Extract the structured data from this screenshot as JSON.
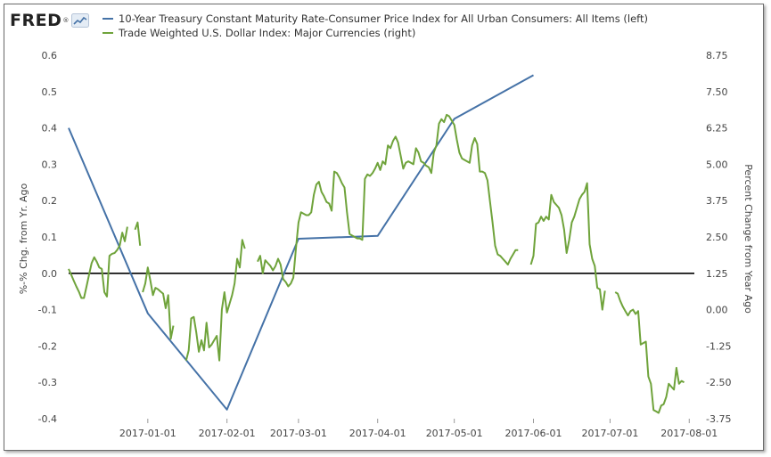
{
  "logo": {
    "text": "FRED",
    "reg_mark": "®"
  },
  "chart_data": {
    "type": "line",
    "series": [
      {
        "name": "10-Year Treasury Constant Maturity Rate-Consumer Price Index for All Urban Consumers: All Items (left)",
        "axis": "left",
        "color": "#4572a7",
        "points": [
          [
            "2016-12-01",
            0.4
          ],
          [
            "2017-01-01",
            -0.11
          ],
          [
            "2017-02-01",
            -0.375
          ],
          [
            "2017-03-01",
            0.095
          ],
          [
            "2017-04-01",
            0.103
          ],
          [
            "2017-05-01",
            0.425
          ],
          [
            "2017-06-01",
            0.545
          ]
        ]
      },
      {
        "name": "Trade Weighted U.S. Dollar Index: Major Currencies (right)",
        "axis": "right",
        "color": "#6fa33b",
        "segments": [
          [
            [
              "2016-12-01",
              1.4
            ],
            [
              "2016-12-02",
              1.2
            ],
            [
              "2016-12-03",
              1.0
            ],
            [
              "2016-12-04",
              0.8
            ],
            [
              "2016-12-05",
              0.62
            ],
            [
              "2016-12-06",
              0.4
            ],
            [
              "2016-12-07",
              0.4
            ],
            [
              "2016-12-08",
              0.8
            ],
            [
              "2016-12-09",
              1.2
            ],
            [
              "2016-12-10",
              1.6
            ],
            [
              "2016-12-11",
              1.8
            ],
            [
              "2016-12-12",
              1.65
            ],
            [
              "2016-12-13",
              1.45
            ],
            [
              "2016-12-14",
              1.4
            ],
            [
              "2016-12-15",
              0.6
            ],
            [
              "2016-12-16",
              0.45
            ],
            [
              "2016-12-17",
              1.85
            ],
            [
              "2016-12-18",
              1.92
            ],
            [
              "2016-12-19",
              1.95
            ],
            [
              "2016-12-20",
              2.05
            ],
            [
              "2016-12-21",
              2.2
            ],
            [
              "2016-12-22",
              2.65
            ],
            [
              "2016-12-23",
              2.35
            ],
            [
              "2016-12-24",
              2.85
            ]
          ],
          [
            [
              "2016-12-27",
              2.75
            ],
            [
              "2016-12-28",
              3.0
            ],
            [
              "2016-12-29",
              2.2
            ]
          ],
          [
            [
              "2016-12-30",
              0.6
            ],
            [
              "2016-12-31",
              0.9
            ],
            [
              "2017-01-01",
              1.45
            ],
            [
              "2017-01-02",
              1.0
            ],
            [
              "2017-01-03",
              0.5
            ],
            [
              "2017-01-04",
              0.75
            ],
            [
              "2017-01-05",
              0.7
            ],
            [
              "2017-01-06",
              0.62
            ],
            [
              "2017-01-07",
              0.55
            ],
            [
              "2017-01-08",
              0.05
            ],
            [
              "2017-01-09",
              0.5
            ],
            [
              "2017-01-10",
              -1.0
            ],
            [
              "2017-01-11",
              -0.55
            ]
          ],
          [
            [
              "2017-01-16",
              -1.75
            ],
            [
              "2017-01-17",
              -1.4
            ],
            [
              "2017-01-18",
              -0.3
            ],
            [
              "2017-01-19",
              -0.25
            ],
            [
              "2017-01-20",
              -0.8
            ],
            [
              "2017-01-21",
              -1.45
            ],
            [
              "2017-01-22",
              -1.05
            ],
            [
              "2017-01-23",
              -1.4
            ],
            [
              "2017-01-24",
              -0.45
            ],
            [
              "2017-01-25",
              -1.3
            ],
            [
              "2017-01-26",
              -1.2
            ],
            [
              "2017-01-27",
              -1.05
            ],
            [
              "2017-01-28",
              -0.9
            ],
            [
              "2017-01-29",
              -1.75
            ],
            [
              "2017-01-30",
              0.0
            ],
            [
              "2017-01-31",
              0.6
            ],
            [
              "2017-02-01",
              -0.1
            ],
            [
              "2017-02-02",
              0.2
            ],
            [
              "2017-02-03",
              0.5
            ],
            [
              "2017-02-04",
              0.9
            ],
            [
              "2017-02-05",
              1.75
            ],
            [
              "2017-02-06",
              1.45
            ],
            [
              "2017-02-07",
              2.4
            ],
            [
              "2017-02-08",
              2.1
            ]
          ],
          [
            [
              "2017-02-13",
              1.65
            ],
            [
              "2017-02-14",
              1.85
            ],
            [
              "2017-02-15",
              1.25
            ],
            [
              "2017-02-16",
              1.7
            ],
            [
              "2017-02-17",
              1.6
            ],
            [
              "2017-02-18",
              1.5
            ],
            [
              "2017-02-19",
              1.35
            ],
            [
              "2017-02-20",
              1.5
            ],
            [
              "2017-02-21",
              1.75
            ],
            [
              "2017-02-22",
              1.55
            ],
            [
              "2017-02-23",
              1.05
            ],
            [
              "2017-02-24",
              0.95
            ],
            [
              "2017-02-25",
              0.8
            ],
            [
              "2017-02-26",
              0.9
            ],
            [
              "2017-02-27",
              1.1
            ],
            [
              "2017-02-28",
              2.1
            ],
            [
              "2017-03-01",
              3.0
            ],
            [
              "2017-03-02",
              3.35
            ],
            [
              "2017-03-03",
              3.3
            ],
            [
              "2017-03-04",
              3.25
            ],
            [
              "2017-03-05",
              3.25
            ],
            [
              "2017-03-06",
              3.35
            ],
            [
              "2017-03-07",
              3.95
            ],
            [
              "2017-03-08",
              4.3
            ],
            [
              "2017-03-09",
              4.4
            ],
            [
              "2017-03-10",
              4.05
            ],
            [
              "2017-03-11",
              3.9
            ],
            [
              "2017-03-12",
              3.7
            ],
            [
              "2017-03-13",
              3.65
            ],
            [
              "2017-03-14",
              3.4
            ],
            [
              "2017-03-15",
              4.75
            ],
            [
              "2017-03-16",
              4.7
            ],
            [
              "2017-03-17",
              4.55
            ],
            [
              "2017-03-18",
              4.35
            ],
            [
              "2017-03-19",
              4.2
            ],
            [
              "2017-03-20",
              3.35
            ],
            [
              "2017-03-21",
              2.6
            ],
            [
              "2017-03-22",
              2.55
            ],
            [
              "2017-03-23",
              2.5
            ],
            [
              "2017-03-24",
              2.45
            ],
            [
              "2017-03-25",
              2.45
            ],
            [
              "2017-03-26",
              2.4
            ],
            [
              "2017-03-27",
              4.5
            ],
            [
              "2017-03-28",
              4.65
            ],
            [
              "2017-03-29",
              4.6
            ],
            [
              "2017-03-30",
              4.7
            ],
            [
              "2017-03-31",
              4.85
            ],
            [
              "2017-04-01",
              5.05
            ],
            [
              "2017-04-02",
              4.8
            ],
            [
              "2017-04-03",
              5.1
            ],
            [
              "2017-04-04",
              5.0
            ],
            [
              "2017-04-05",
              5.65
            ],
            [
              "2017-04-06",
              5.55
            ],
            [
              "2017-04-07",
              5.8
            ],
            [
              "2017-04-08",
              5.95
            ],
            [
              "2017-04-09",
              5.75
            ],
            [
              "2017-04-10",
              5.3
            ],
            [
              "2017-04-11",
              4.85
            ],
            [
              "2017-04-12",
              5.05
            ],
            [
              "2017-04-13",
              5.1
            ],
            [
              "2017-04-14",
              5.05
            ],
            [
              "2017-04-15",
              5.0
            ],
            [
              "2017-04-16",
              5.55
            ],
            [
              "2017-04-17",
              5.4
            ],
            [
              "2017-04-18",
              5.1
            ],
            [
              "2017-04-19",
              5.05
            ],
            [
              "2017-04-20",
              4.95
            ],
            [
              "2017-04-21",
              4.9
            ],
            [
              "2017-04-22",
              4.7
            ],
            [
              "2017-04-23",
              5.4
            ],
            [
              "2017-04-24",
              5.65
            ],
            [
              "2017-04-25",
              6.4
            ],
            [
              "2017-04-26",
              6.55
            ],
            [
              "2017-04-27",
              6.45
            ],
            [
              "2017-04-28",
              6.7
            ],
            [
              "2017-04-29",
              6.65
            ],
            [
              "2017-04-30",
              6.5
            ],
            [
              "2017-05-01",
              6.35
            ],
            [
              "2017-05-02",
              5.85
            ],
            [
              "2017-05-03",
              5.4
            ],
            [
              "2017-05-04",
              5.2
            ],
            [
              "2017-05-05",
              5.15
            ],
            [
              "2017-05-06",
              5.1
            ],
            [
              "2017-05-07",
              5.05
            ],
            [
              "2017-05-08",
              5.65
            ],
            [
              "2017-05-09",
              5.9
            ],
            [
              "2017-05-10",
              5.7
            ],
            [
              "2017-05-11",
              4.75
            ],
            [
              "2017-05-12",
              4.75
            ],
            [
              "2017-05-13",
              4.7
            ],
            [
              "2017-05-14",
              4.45
            ],
            [
              "2017-05-15",
              3.7
            ],
            [
              "2017-05-16",
              3.0
            ],
            [
              "2017-05-17",
              2.2
            ],
            [
              "2017-05-18",
              1.9
            ],
            [
              "2017-05-19",
              1.85
            ],
            [
              "2017-05-20",
              1.75
            ],
            [
              "2017-05-21",
              1.65
            ],
            [
              "2017-05-22",
              1.55
            ],
            [
              "2017-05-23",
              1.75
            ],
            [
              "2017-05-24",
              1.9
            ],
            [
              "2017-05-25",
              2.05
            ],
            [
              "2017-05-26",
              2.05
            ]
          ],
          [
            [
              "2017-05-31",
              1.55
            ],
            [
              "2017-06-01",
              1.85
            ],
            [
              "2017-06-02",
              2.95
            ],
            [
              "2017-06-03",
              3.0
            ],
            [
              "2017-06-04",
              3.2
            ],
            [
              "2017-06-05",
              3.05
            ],
            [
              "2017-06-06",
              3.2
            ],
            [
              "2017-06-07",
              3.1
            ],
            [
              "2017-06-08",
              3.95
            ],
            [
              "2017-06-09",
              3.7
            ],
            [
              "2017-06-10",
              3.6
            ],
            [
              "2017-06-11",
              3.5
            ],
            [
              "2017-06-12",
              3.25
            ],
            [
              "2017-06-13",
              2.75
            ],
            [
              "2017-06-14",
              1.95
            ],
            [
              "2017-06-15",
              2.4
            ],
            [
              "2017-06-16",
              3.0
            ],
            [
              "2017-06-17",
              3.2
            ],
            [
              "2017-06-18",
              3.5
            ],
            [
              "2017-06-19",
              3.8
            ],
            [
              "2017-06-20",
              3.95
            ],
            [
              "2017-06-21",
              4.05
            ],
            [
              "2017-06-22",
              4.35
            ],
            [
              "2017-06-23",
              2.25
            ],
            [
              "2017-06-24",
              1.75
            ],
            [
              "2017-06-25",
              1.5
            ],
            [
              "2017-06-26",
              0.75
            ],
            [
              "2017-06-27",
              0.7
            ],
            [
              "2017-06-28",
              0.0
            ],
            [
              "2017-06-29",
              0.65
            ]
          ],
          [
            [
              "2017-07-03",
              0.6
            ],
            [
              "2017-07-04",
              0.55
            ],
            [
              "2017-07-05",
              0.3
            ],
            [
              "2017-07-06",
              0.1
            ],
            [
              "2017-07-07",
              -0.05
            ],
            [
              "2017-07-08",
              -0.2
            ],
            [
              "2017-07-09",
              -0.05
            ],
            [
              "2017-07-10",
              0.0
            ],
            [
              "2017-07-11",
              -0.15
            ],
            [
              "2017-07-12",
              -0.05
            ],
            [
              "2017-07-13",
              -1.2
            ],
            [
              "2017-07-14",
              -1.15
            ],
            [
              "2017-07-15",
              -1.1
            ],
            [
              "2017-07-16",
              -2.3
            ],
            [
              "2017-07-17",
              -2.55
            ],
            [
              "2017-07-18",
              -3.45
            ],
            [
              "2017-07-19",
              -3.5
            ],
            [
              "2017-07-20",
              -3.55
            ],
            [
              "2017-07-21",
              -3.3
            ],
            [
              "2017-07-22",
              -3.25
            ],
            [
              "2017-07-23",
              -3.0
            ],
            [
              "2017-07-24",
              -2.55
            ],
            [
              "2017-07-25",
              -2.65
            ],
            [
              "2017-07-26",
              -2.75
            ],
            [
              "2017-07-27",
              -2.0
            ],
            [
              "2017-07-28",
              -2.55
            ],
            [
              "2017-07-29",
              -2.45
            ],
            [
              "2017-07-30",
              -2.5
            ]
          ]
        ]
      }
    ],
    "x_ticks": [
      "2017-01-01",
      "2017-02-01",
      "2017-03-01",
      "2017-04-01",
      "2017-05-01",
      "2017-06-01",
      "2017-07-01",
      "2017-08-01"
    ],
    "x_range": [
      "2016-12-01",
      "2017-08-03"
    ],
    "left_axis": {
      "label": "%-% Chg. from Yr. Ago",
      "range": [
        -0.4,
        0.6
      ],
      "ticks": [
        "0.6",
        "0.5",
        "0.4",
        "0.3",
        "0.2",
        "0.1",
        "0.0",
        "-0.1",
        "-0.2",
        "-0.3",
        "-0.4"
      ]
    },
    "right_axis": {
      "label": "Percent Change from Year Ago",
      "range": [
        -3.75,
        8.75
      ],
      "ticks": [
        "8.75",
        "7.50",
        "6.25",
        "5.00",
        "3.75",
        "2.50",
        "1.25",
        "0.00",
        "-1.25",
        "-2.50",
        "-3.75"
      ]
    },
    "zero_line": true,
    "grid": false,
    "legend_position": "top-left"
  }
}
